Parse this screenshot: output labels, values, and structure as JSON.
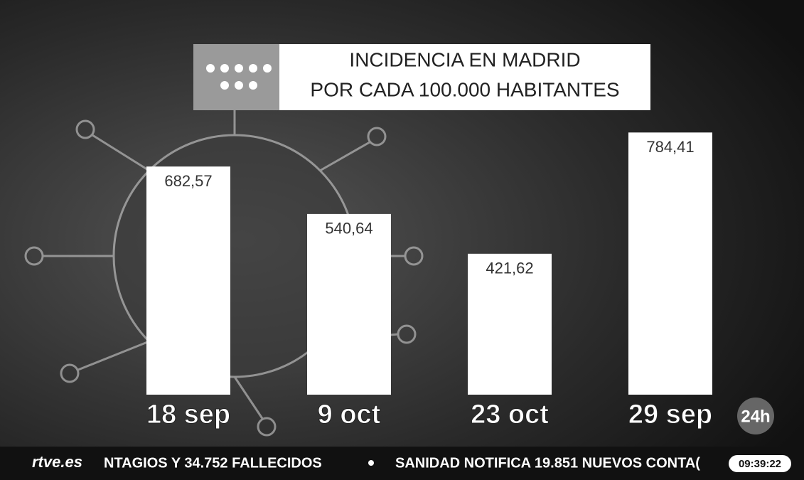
{
  "chart_data": {
    "type": "bar",
    "title": [
      "INCIDENCIA EN MADRID",
      "POR CADA 100.000 HABITANTES"
    ],
    "categories": [
      "18 sep",
      "9 oct",
      "23 oct",
      "29 sep"
    ],
    "values": [
      682.57,
      540.64,
      421.62,
      784.41
    ],
    "value_labels": [
      "682,57",
      "540,64",
      "421,62",
      "784,41"
    ],
    "color": "#ffffff"
  },
  "overlay": {
    "channel_logo": "24h",
    "ticker": {
      "brand": "rtve.es",
      "items": [
        "NTAGIOS Y 34.752 FALLECIDOS",
        "SANIDAD NOTIFICA 19.851 NUEVOS CONTA("
      ],
      "clock": "09:39:22"
    }
  }
}
